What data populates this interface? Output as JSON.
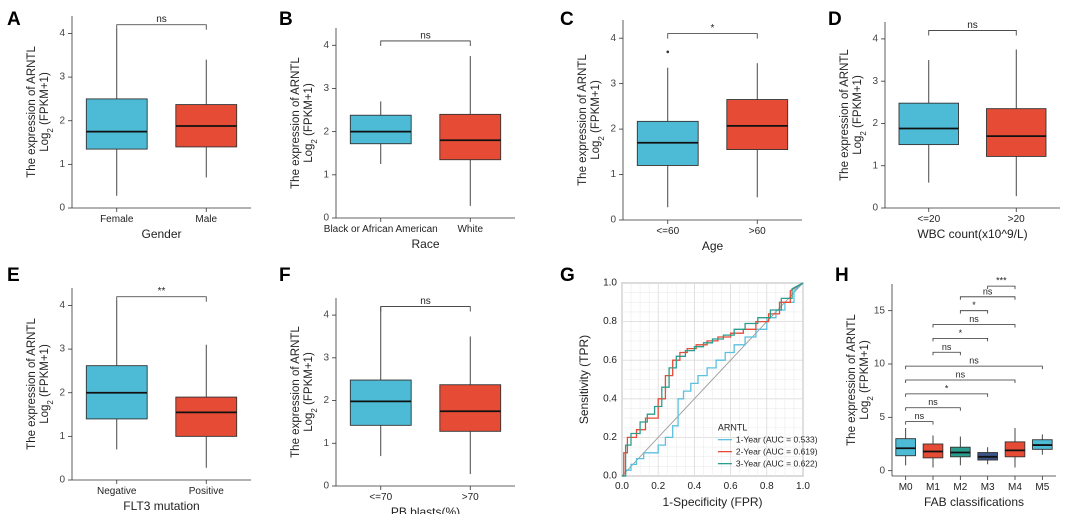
{
  "colors": {
    "blue": "#4DBBD5",
    "red": "#E64B35",
    "teal": "#2A9D8F",
    "navy": "#3C5488",
    "roc_blue": "#5BC0DE",
    "roc_red": "#E64B35",
    "roc_green": "#2A9D8F"
  },
  "chart_data": [
    {
      "type": "box",
      "panel": "A",
      "ylabel1": "The expression of ARNTL",
      "ylabel2_pre": "Log",
      "ylabel2_sub": "2",
      "ylabel2_post": " (FPKM+1)",
      "xlabel": "Gender",
      "categories": [
        "Female",
        "Male"
      ],
      "ylim": [
        0,
        4.4
      ],
      "yticks": [
        0,
        1,
        2,
        3,
        4
      ],
      "boxes": [
        {
          "label": "Female",
          "min": 0.28,
          "q1": 1.35,
          "median": 1.75,
          "q3": 2.5,
          "max": 4.1,
          "color": "blue"
        },
        {
          "label": "Male",
          "min": 0.7,
          "q1": 1.4,
          "median": 1.88,
          "q3": 2.37,
          "max": 3.4,
          "color": "red"
        }
      ],
      "comparisons": [
        {
          "from": 0,
          "to": 1,
          "y": 4.2,
          "label": "ns"
        }
      ]
    },
    {
      "type": "box",
      "panel": "B",
      "ylabel1": "The expression of ARNTL",
      "ylabel2_pre": "Log",
      "ylabel2_sub": "2",
      "ylabel2_post": " (FPKM+1)",
      "xlabel": "Race",
      "categories": [
        "Black or African American",
        "White"
      ],
      "ylim": [
        0,
        4.4
      ],
      "yticks": [
        0,
        1,
        2,
        3,
        4
      ],
      "boxes": [
        {
          "label": "Black or African American",
          "min": 1.25,
          "q1": 1.72,
          "median": 2.0,
          "q3": 2.38,
          "max": 2.7,
          "color": "blue"
        },
        {
          "label": "White",
          "min": 0.28,
          "q1": 1.35,
          "median": 1.8,
          "q3": 2.4,
          "max": 3.75,
          "color": "red"
        }
      ],
      "comparisons": [
        {
          "from": 0,
          "to": 1,
          "y": 4.1,
          "label": "ns"
        }
      ]
    },
    {
      "type": "box",
      "panel": "C",
      "ylabel1": "The expression of ARNTL",
      "ylabel2_pre": "Log",
      "ylabel2_sub": "2",
      "ylabel2_post": " (FPKM+1)",
      "xlabel": "Age",
      "categories": [
        "<=60",
        ">60"
      ],
      "ylim": [
        0,
        4.4
      ],
      "yticks": [
        0,
        1,
        2,
        3,
        4
      ],
      "boxes": [
        {
          "label": "<=60",
          "min": 0.28,
          "q1": 1.2,
          "median": 1.7,
          "q3": 2.17,
          "max": 3.35,
          "color": "blue",
          "outliers": [
            3.7
          ]
        },
        {
          "label": ">60",
          "min": 0.5,
          "q1": 1.55,
          "median": 2.07,
          "q3": 2.65,
          "max": 3.45,
          "color": "red"
        }
      ],
      "comparisons": [
        {
          "from": 0,
          "to": 1,
          "y": 4.1,
          "label": "*"
        }
      ]
    },
    {
      "type": "box",
      "panel": "D",
      "ylabel1": "The expression of ARNTL",
      "ylabel2_pre": "Log",
      "ylabel2_sub": "2",
      "ylabel2_post": " (FPKM+1)",
      "xlabel": "WBC count(x10^9/L)",
      "categories": [
        "<=20",
        ">20"
      ],
      "ylim": [
        0,
        4.4
      ],
      "yticks": [
        0,
        1,
        2,
        3,
        4
      ],
      "boxes": [
        {
          "label": "<=20",
          "min": 0.6,
          "q1": 1.5,
          "median": 1.88,
          "q3": 2.48,
          "max": 3.5,
          "color": "blue"
        },
        {
          "label": ">20",
          "min": 0.28,
          "q1": 1.22,
          "median": 1.7,
          "q3": 2.35,
          "max": 3.75,
          "color": "red"
        }
      ],
      "comparisons": [
        {
          "from": 0,
          "to": 1,
          "y": 4.2,
          "label": "ns"
        }
      ]
    },
    {
      "type": "box",
      "panel": "E",
      "ylabel1": "The expression of ARNTL",
      "ylabel2_pre": "Log",
      "ylabel2_sub": "2",
      "ylabel2_post": " (FPKM+1)",
      "xlabel": "FLT3 mutation",
      "categories": [
        "Negative",
        "Positive"
      ],
      "ylim": [
        0,
        4.4
      ],
      "yticks": [
        0,
        1,
        2,
        3,
        4
      ],
      "boxes": [
        {
          "label": "Negative",
          "min": 0.7,
          "q1": 1.4,
          "median": 2.0,
          "q3": 2.62,
          "max": 4.1,
          "color": "blue"
        },
        {
          "label": "Positive",
          "min": 0.28,
          "q1": 1.0,
          "median": 1.55,
          "q3": 1.9,
          "max": 3.1,
          "color": "red"
        }
      ],
      "comparisons": [
        {
          "from": 0,
          "to": 1,
          "y": 4.2,
          "label": "**"
        }
      ]
    },
    {
      "type": "box",
      "panel": "F",
      "ylabel1": "The expression of ARNTL",
      "ylabel2_pre": "Log",
      "ylabel2_sub": "2",
      "ylabel2_post": " (FPKM+1)",
      "xlabel": "PB blasts(%)",
      "categories": [
        "<=70",
        ">70"
      ],
      "ylim": [
        0,
        4.4
      ],
      "yticks": [
        0,
        1,
        2,
        3,
        4
      ],
      "boxes": [
        {
          "label": "<=70",
          "min": 0.7,
          "q1": 1.42,
          "median": 1.98,
          "q3": 2.48,
          "max": 4.2,
          "color": "blue"
        },
        {
          "label": ">70",
          "min": 0.28,
          "q1": 1.28,
          "median": 1.75,
          "q3": 2.37,
          "max": 3.5,
          "color": "red"
        }
      ],
      "comparisons": [
        {
          "from": 0,
          "to": 1,
          "y": 4.2,
          "label": "ns"
        }
      ]
    },
    {
      "type": "line",
      "panel": "G",
      "xlabel": "1-Specificity (FPR)",
      "ylabel": "Sensitivity (TPR)",
      "xlim": [
        0,
        1
      ],
      "ylim": [
        0,
        1
      ],
      "ticks": [
        "0.0",
        "0.2",
        "0.4",
        "0.6",
        "0.8",
        "1.0"
      ],
      "legend_title": "ARNTL",
      "series": [
        {
          "name": "1-Year (AUC = 0.533)",
          "color": "roc_blue",
          "x": [
            0,
            0.02,
            0.02,
            0.05,
            0.05,
            0.08,
            0.08,
            0.12,
            0.12,
            0.2,
            0.2,
            0.24,
            0.24,
            0.28,
            0.28,
            0.31,
            0.31,
            0.34,
            0.34,
            0.38,
            0.38,
            0.42,
            0.42,
            0.47,
            0.47,
            0.52,
            0.52,
            0.57,
            0.57,
            0.62,
            0.62,
            0.68,
            0.68,
            0.74,
            0.74,
            0.8,
            0.8,
            0.85,
            0.85,
            0.9,
            0.9,
            0.95,
            0.95,
            1.0
          ],
          "y": [
            0,
            0,
            0.03,
            0.03,
            0.06,
            0.06,
            0.09,
            0.09,
            0.12,
            0.12,
            0.16,
            0.16,
            0.2,
            0.2,
            0.26,
            0.26,
            0.4,
            0.4,
            0.44,
            0.44,
            0.48,
            0.48,
            0.52,
            0.52,
            0.56,
            0.56,
            0.6,
            0.6,
            0.64,
            0.64,
            0.68,
            0.68,
            0.72,
            0.72,
            0.76,
            0.76,
            0.82,
            0.82,
            0.86,
            0.86,
            0.9,
            0.9,
            0.96,
            1.0
          ]
        },
        {
          "name": "2-Year (AUC = 0.619)",
          "color": "roc_red",
          "x": [
            0,
            0.01,
            0.01,
            0.03,
            0.03,
            0.08,
            0.08,
            0.13,
            0.13,
            0.2,
            0.2,
            0.24,
            0.24,
            0.28,
            0.28,
            0.32,
            0.32,
            0.36,
            0.36,
            0.41,
            0.41,
            0.47,
            0.47,
            0.53,
            0.53,
            0.6,
            0.6,
            0.67,
            0.67,
            0.74,
            0.74,
            0.81,
            0.81,
            0.87,
            0.87,
            0.93,
            0.93,
            1.0
          ],
          "y": [
            0,
            0,
            0.12,
            0.12,
            0.2,
            0.2,
            0.24,
            0.24,
            0.3,
            0.3,
            0.4,
            0.4,
            0.52,
            0.52,
            0.6,
            0.6,
            0.64,
            0.64,
            0.66,
            0.66,
            0.68,
            0.68,
            0.7,
            0.7,
            0.72,
            0.72,
            0.74,
            0.74,
            0.76,
            0.76,
            0.8,
            0.8,
            0.84,
            0.84,
            0.9,
            0.9,
            0.96,
            1.0
          ]
        },
        {
          "name": "3-Year (AUC = 0.622)",
          "color": "roc_green",
          "x": [
            0,
            0.02,
            0.02,
            0.05,
            0.05,
            0.1,
            0.1,
            0.14,
            0.14,
            0.18,
            0.18,
            0.22,
            0.22,
            0.26,
            0.26,
            0.3,
            0.3,
            0.35,
            0.35,
            0.4,
            0.4,
            0.45,
            0.45,
            0.5,
            0.5,
            0.56,
            0.56,
            0.62,
            0.62,
            0.68,
            0.68,
            0.75,
            0.75,
            0.82,
            0.82,
            0.88,
            0.88,
            0.94,
            0.94,
            1.0
          ],
          "y": [
            0,
            0,
            0.16,
            0.16,
            0.22,
            0.22,
            0.28,
            0.28,
            0.32,
            0.32,
            0.36,
            0.36,
            0.46,
            0.46,
            0.56,
            0.56,
            0.62,
            0.62,
            0.65,
            0.65,
            0.67,
            0.67,
            0.69,
            0.69,
            0.71,
            0.71,
            0.73,
            0.73,
            0.76,
            0.76,
            0.79,
            0.79,
            0.82,
            0.82,
            0.86,
            0.86,
            0.92,
            0.92,
            0.97,
            1.0
          ]
        }
      ]
    },
    {
      "type": "box",
      "panel": "H",
      "ylabel1": "The expression of ARNTL",
      "ylabel2_pre": "Log",
      "ylabel2_sub": "2",
      "ylabel2_post": " (FPKM+1)",
      "xlabel": "FAB classifications",
      "categories": [
        "M0",
        "M1",
        "M2",
        "M3",
        "M4",
        "M5"
      ],
      "ylim": [
        -0.5,
        17.5
      ],
      "yticks": [
        0,
        5,
        10,
        15
      ],
      "boxes": [
        {
          "label": "M0",
          "min": 0.5,
          "q1": 1.4,
          "median": 2.1,
          "q3": 3.0,
          "max": 4.0,
          "color": "blue"
        },
        {
          "label": "M1",
          "min": 0.3,
          "q1": 1.2,
          "median": 1.8,
          "q3": 2.5,
          "max": 3.3,
          "color": "red"
        },
        {
          "label": "M2",
          "min": 0.5,
          "q1": 1.3,
          "median": 1.7,
          "q3": 2.2,
          "max": 3.2,
          "color": "teal"
        },
        {
          "label": "M3",
          "min": 0.6,
          "q1": 1.0,
          "median": 1.3,
          "q3": 1.7,
          "max": 2.2,
          "color": "navy"
        },
        {
          "label": "M4",
          "min": 0.3,
          "q1": 1.3,
          "median": 1.9,
          "q3": 2.7,
          "max": 4.0,
          "color": "red"
        },
        {
          "label": "M5",
          "min": 1.5,
          "q1": 2.0,
          "median": 2.4,
          "q3": 2.9,
          "max": 3.4,
          "color": "blue"
        }
      ],
      "comparisons": [
        {
          "from": 0,
          "to": 1,
          "y": 4.6,
          "label": "ns"
        },
        {
          "from": 0,
          "to": 2,
          "y": 5.9,
          "label": "ns"
        },
        {
          "from": 0,
          "to": 3,
          "y": 7.2,
          "label": "*"
        },
        {
          "from": 0,
          "to": 4,
          "y": 8.5,
          "label": "ns"
        },
        {
          "from": 0,
          "to": 5,
          "y": 9.8,
          "label": "ns"
        },
        {
          "from": 1,
          "to": 2,
          "y": 11.1,
          "label": "ns"
        },
        {
          "from": 1,
          "to": 3,
          "y": 12.4,
          "label": "*"
        },
        {
          "from": 1,
          "to": 4,
          "y": 13.7,
          "label": "ns"
        },
        {
          "from": 2,
          "to": 3,
          "y": 15.0,
          "label": "*"
        },
        {
          "from": 2,
          "to": 4,
          "y": 16.3,
          "label": "ns"
        },
        {
          "from": 3,
          "to": 4,
          "y": 17.3,
          "label": "***"
        }
      ]
    }
  ]
}
